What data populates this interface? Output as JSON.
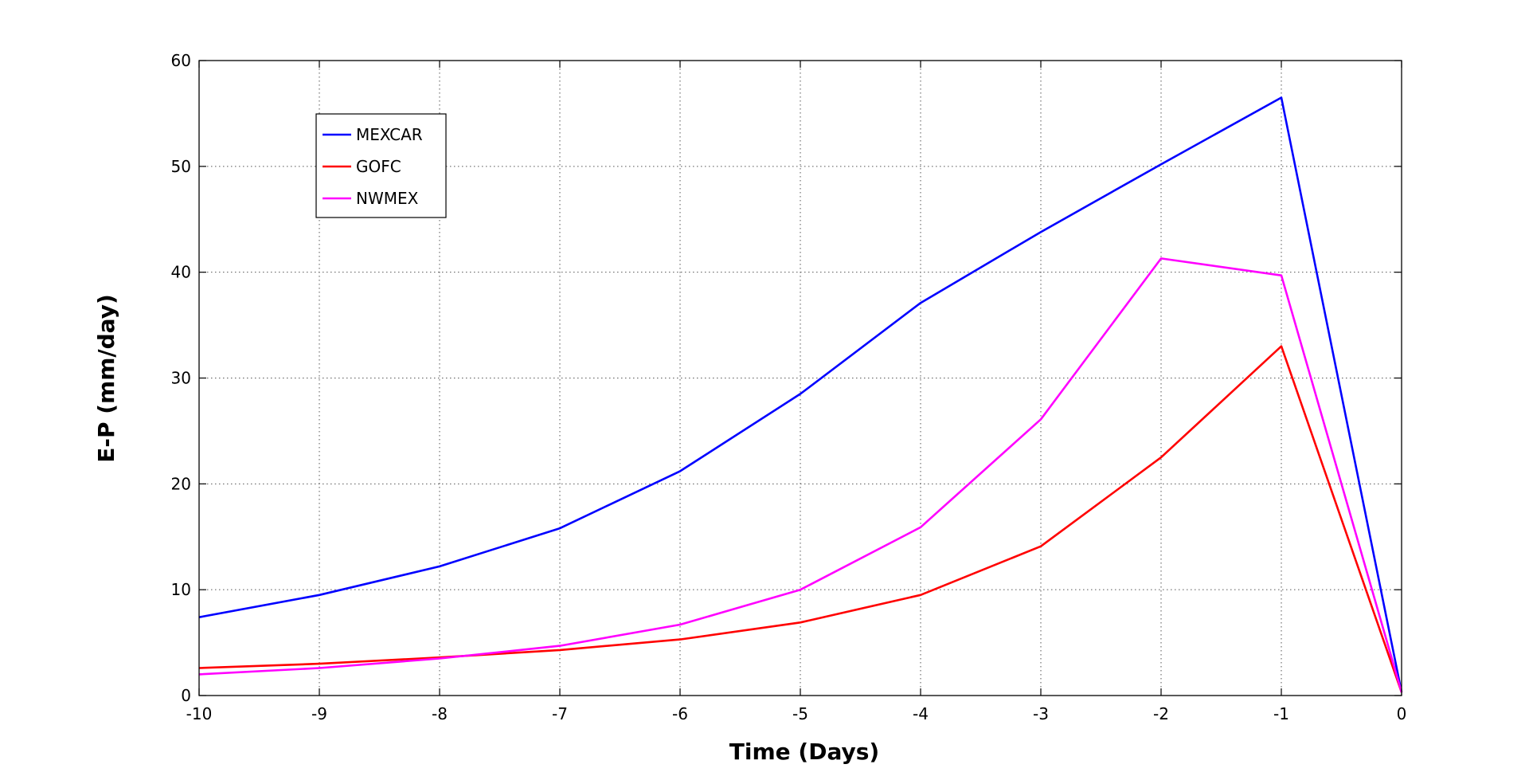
{
  "chart_data": {
    "type": "line",
    "title": "",
    "xlabel": "Time (Days)",
    "ylabel": "E-P (mm/day)",
    "xlim": [
      -10,
      0
    ],
    "ylim": [
      0,
      60
    ],
    "xticks": [
      -10,
      -9,
      -8,
      -7,
      -6,
      -5,
      -4,
      -3,
      -2,
      -1,
      0
    ],
    "yticks": [
      0,
      10,
      20,
      30,
      40,
      50,
      60
    ],
    "grid": true,
    "legend_position": "top-left",
    "x": [
      -10,
      -9,
      -8,
      -7,
      -6,
      -5,
      -4,
      -3,
      -2,
      -1,
      0
    ],
    "series": [
      {
        "name": "MEXCAR",
        "color": "#0000ff",
        "values": [
          7.4,
          9.5,
          12.2,
          15.8,
          21.2,
          28.5,
          37.1,
          43.8,
          50.2,
          56.5,
          0.3
        ]
      },
      {
        "name": "GOFC",
        "color": "#ff0000",
        "values": [
          2.6,
          3.0,
          3.6,
          4.3,
          5.3,
          6.9,
          9.5,
          14.1,
          22.5,
          33.0,
          0.3
        ]
      },
      {
        "name": "NWMEX",
        "color": "#ff00ff",
        "values": [
          2.0,
          2.6,
          3.5,
          4.7,
          6.7,
          10.0,
          15.9,
          26.1,
          41.3,
          39.7,
          0.3
        ]
      }
    ]
  }
}
